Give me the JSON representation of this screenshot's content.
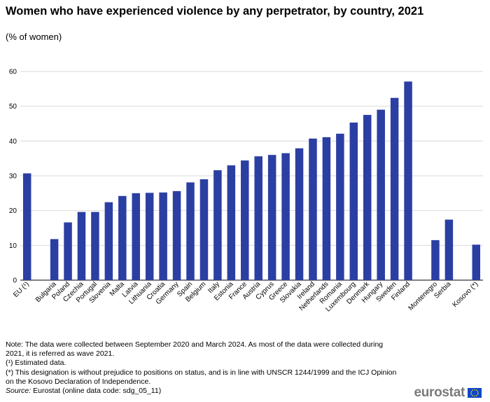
{
  "title": "Women who have experienced violence by any perpetrator, by country, 2021",
  "subtitle": "(% of women)",
  "chart_data": {
    "type": "bar",
    "categories": [
      "EU (¹)",
      "Bulgaria",
      "Poland",
      "Czechia",
      "Portugal",
      "Slovenia",
      "Malta",
      "Latvia",
      "Lithuania",
      "Croatia",
      "Germany",
      "Spain",
      "Belgium",
      "Italy",
      "Estonia",
      "France",
      "Austria",
      "Cyprus",
      "Greece",
      "Slovakia",
      "Ireland",
      "Netherlands",
      "Romania",
      "Luxembourg",
      "Denmark",
      "Hungary",
      "Sweden",
      "Finland",
      "Montenegro",
      "Serbia",
      "Kosovo (*)"
    ],
    "slots": [
      0,
      2,
      3,
      4,
      5,
      6,
      7,
      8,
      9,
      10,
      11,
      12,
      13,
      14,
      15,
      16,
      17,
      18,
      19,
      20,
      21,
      22,
      23,
      24,
      25,
      26,
      27,
      28,
      30,
      31,
      33
    ],
    "total_slots": 34,
    "values": [
      30.7,
      11.8,
      16.6,
      19.6,
      19.6,
      22.4,
      24.2,
      25.0,
      25.1,
      25.2,
      25.6,
      28.1,
      29.0,
      31.6,
      33.0,
      34.4,
      35.6,
      36.0,
      36.5,
      37.9,
      40.7,
      41.1,
      42.1,
      45.3,
      47.5,
      49.0,
      52.4,
      57.1,
      11.5,
      17.4,
      10.2
    ],
    "ylim": [
      0,
      60
    ],
    "yticks": [
      0,
      10,
      20,
      30,
      40,
      50,
      60
    ],
    "xlabel": "",
    "ylabel": "",
    "grid": true,
    "bar_color": "#2b3fa3"
  },
  "notes": {
    "note": "Note: The data were collected between September 2020 and March 2024. As most of the data were collected during 2021, it is referred as wave 2021.",
    "estimated": "(¹) Estimated data.",
    "designation": "(*) This designation is without prejudice to positions on status, and is in line with UNSCR 1244/1999 and the ICJ Opinion on the Kosovo Declaration of Independence.",
    "source_label": "Source:",
    "source_text": " Eurostat (online data code: sdg_05_11)"
  },
  "logo": {
    "text": "eurostat",
    "icon": "eu-flag-icon"
  }
}
